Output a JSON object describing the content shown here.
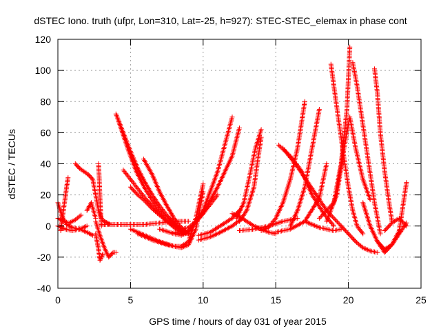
{
  "chart_data": {
    "type": "scatter",
    "title": "dSTEC Iono. truth (ufpr, Lon=310, Lat=-25, h=927): STEC-STEC_elemax in phase cont",
    "xlabel": "GPS time / hours of day 031 of year 2015",
    "ylabel": "dSTEC  / TECUs",
    "xlim": [
      0,
      25
    ],
    "ylim": [
      -40,
      120
    ],
    "xticks": [
      "0",
      "5",
      "10",
      "15",
      "20",
      "25"
    ],
    "yticks": [
      "-40",
      "-20",
      "0",
      "20",
      "40",
      "60",
      "80",
      "100",
      "120"
    ],
    "grid": true,
    "marker": "+",
    "colors": {
      "series": "#ff0000",
      "grid": "#a0a0a0",
      "axes": "#000000",
      "background": "#ffffff"
    },
    "series": [
      {
        "x": [
          0.0,
          0.3,
          0.6,
          1.0,
          1.5,
          2.0,
          2.4
        ],
        "y": [
          15,
          6,
          1,
          -1,
          -2,
          -4,
          -6
        ]
      },
      {
        "x": [
          0.2,
          0.35,
          0.5,
          0.6,
          0.7
        ],
        "y": [
          -3,
          8,
          18,
          25,
          31
        ]
      },
      {
        "x": [
          0.0,
          0.5,
          1.0,
          1.5,
          2.0
        ],
        "y": [
          0,
          -2,
          -3,
          -2,
          0
        ]
      },
      {
        "x": [
          0.0,
          0.4,
          0.8,
          1.2,
          1.6
        ],
        "y": [
          5,
          3,
          2,
          4,
          7
        ]
      },
      {
        "x": [
          1.2,
          1.5,
          1.8,
          2.1,
          2.4,
          2.6,
          2.8,
          3.0,
          3.2,
          3.4,
          3.6
        ],
        "y": [
          40,
          37,
          35,
          33,
          30,
          20,
          10,
          5,
          3,
          2,
          1
        ]
      },
      {
        "x": [
          2.0,
          2.3,
          2.6
        ],
        "y": [
          10,
          15,
          5
        ]
      },
      {
        "x": [
          2.8,
          2.85,
          2.9,
          2.95,
          3.0
        ],
        "y": [
          40,
          30,
          18,
          8,
          0
        ]
      },
      {
        "x": [
          2.6,
          2.9,
          3.2,
          3.5,
          3.8,
          4.0
        ],
        "y": [
          3,
          -6,
          -14,
          -20,
          -17,
          -17
        ]
      },
      {
        "x": [
          2.6,
          2.7,
          2.8,
          2.9,
          3.0,
          3.1
        ],
        "y": [
          -5,
          -10,
          -15,
          -22,
          -20,
          -18
        ]
      },
      {
        "x": [
          3.0,
          4.0,
          5.0,
          6.0,
          7.0,
          8.0,
          9.0
        ],
        "y": [
          1,
          1,
          1,
          1,
          2,
          3,
          3
        ]
      },
      {
        "x": [
          4.0,
          4.5,
          5.0,
          5.5,
          6.0,
          6.5,
          7.0,
          7.5,
          8.0,
          8.5,
          9.0
        ],
        "y": [
          72,
          60,
          48,
          37,
          28,
          20,
          13,
          7,
          2,
          -3,
          -5
        ]
      },
      {
        "x": [
          4.2,
          4.8,
          5.4,
          6.0,
          6.6,
          7.2,
          7.8,
          8.4,
          8.8
        ],
        "y": [
          67,
          50,
          35,
          24,
          15,
          8,
          3,
          -2,
          -4
        ]
      },
      {
        "x": [
          4.5,
          5.0,
          5.5,
          6.0,
          6.5,
          7.0,
          7.5,
          8.0,
          8.5,
          9.0
        ],
        "y": [
          36,
          30,
          24,
          18,
          13,
          8,
          3,
          -1,
          -4,
          -5
        ]
      },
      {
        "x": [
          5.0,
          5.5,
          6.0,
          6.5,
          7.0,
          7.5,
          8.0,
          8.5
        ],
        "y": [
          25,
          20,
          16,
          11,
          7,
          3,
          0,
          -3
        ]
      },
      {
        "x": [
          5.9,
          6.5,
          7.0,
          7.5,
          8.0,
          8.5,
          9.0
        ],
        "y": [
          43,
          33,
          22,
          13,
          5,
          -1,
          -5
        ]
      },
      {
        "x": [
          5.0,
          6.0,
          7.0,
          8.0,
          8.5,
          9.0,
          9.5,
          10.0
        ],
        "y": [
          -2,
          -6,
          -10,
          -13,
          -13,
          -10,
          5,
          27
        ]
      },
      {
        "x": [
          5.5,
          6.5,
          7.5,
          8.5,
          9.0,
          9.5,
          10.0
        ],
        "y": [
          -5,
          -9,
          -12,
          -14,
          -12,
          -2,
          22
        ]
      },
      {
        "x": [
          7.0,
          8.0,
          8.5,
          9.0,
          10.0,
          11.0,
          12.0
        ],
        "y": [
          -2,
          -5,
          -6,
          -4,
          10,
          35,
          70
        ]
      },
      {
        "x": [
          8.0,
          8.5,
          9.0,
          10.0,
          11.0,
          12.0,
          12.5
        ],
        "y": [
          -4,
          -5,
          -3,
          8,
          25,
          45,
          63
        ]
      },
      {
        "x": [
          8.5,
          9.0,
          9.5,
          10.0,
          10.5,
          11.0
        ],
        "y": [
          -2,
          -1,
          3,
          8,
          14,
          20
        ]
      },
      {
        "x": [
          9.7,
          10.5,
          11.0,
          11.5,
          12.0,
          12.5
        ],
        "y": [
          -6,
          -4,
          -1,
          2,
          5,
          10
        ]
      },
      {
        "x": [
          9.7,
          10.5,
          11.2,
          12.0,
          12.7
        ],
        "y": [
          -9,
          -7,
          -4,
          0,
          5
        ]
      },
      {
        "x": [
          12.0,
          12.5,
          13.0,
          13.5,
          14.0,
          14.5,
          15.0
        ],
        "y": [
          8,
          6,
          3,
          0,
          -2,
          -4,
          -5
        ]
      },
      {
        "x": [
          12.3,
          12.8,
          13.2,
          13.6,
          14.0
        ],
        "y": [
          5,
          15,
          32,
          50,
          62
        ]
      },
      {
        "x": [
          12.5,
          13.0,
          13.5,
          13.8,
          14.0
        ],
        "y": [
          3,
          10,
          25,
          45,
          57
        ]
      },
      {
        "x": [
          12.5,
          13.5,
          14.5,
          15.5,
          16.5
        ],
        "y": [
          -3,
          -2,
          0,
          3,
          5
        ]
      },
      {
        "x": [
          14.0,
          14.5,
          15.0,
          15.5,
          16.0,
          16.5,
          17.0
        ],
        "y": [
          -3,
          -1,
          5,
          15,
          30,
          50,
          80
        ]
      },
      {
        "x": [
          15.2,
          16.0,
          16.8,
          17.5,
          18.3,
          19.0
        ],
        "y": [
          52,
          45,
          35,
          20,
          8,
          0
        ]
      },
      {
        "x": [
          15.5,
          16.5,
          17.5,
          18.5,
          19.5
        ],
        "y": [
          50,
          38,
          24,
          10,
          0
        ]
      },
      {
        "x": [
          15.0,
          16.0,
          17.0,
          18.0,
          18.5
        ],
        "y": [
          -4,
          -2,
          3,
          18,
          40
        ]
      },
      {
        "x": [
          16.0,
          16.5,
          17.0,
          17.5,
          18.0
        ],
        "y": [
          0,
          10,
          25,
          50,
          75
        ]
      },
      {
        "x": [
          17.0,
          17.5,
          18.0,
          18.5,
          19.0,
          19.5
        ],
        "y": [
          3,
          1,
          -1,
          -2,
          -3,
          -2
        ]
      },
      {
        "x": [
          18.8,
          19.0,
          19.3,
          19.6,
          20.0,
          20.3,
          20.6,
          21.0
        ],
        "y": [
          104,
          90,
          70,
          50,
          25,
          10,
          0,
          -5
        ]
      },
      {
        "x": [
          18.0,
          19.0,
          19.5,
          19.9,
          20.1
        ],
        "y": [
          5,
          15,
          40,
          75,
          115
        ]
      },
      {
        "x": [
          18.5,
          19.2,
          19.7,
          20.1,
          20.5,
          21.0,
          21.5
        ],
        "y": [
          3,
          20,
          50,
          70,
          50,
          30,
          17
        ]
      },
      {
        "x": [
          20.3,
          20.6,
          21.0,
          21.4,
          21.8,
          22.2
        ],
        "y": [
          105,
          90,
          65,
          40,
          15,
          -5
        ]
      },
      {
        "x": [
          19.5,
          20.0,
          20.5,
          21.0,
          21.5,
          22.0
        ],
        "y": [
          0,
          -5,
          -10,
          -14,
          -16,
          -17
        ]
      },
      {
        "x": [
          21.0,
          21.5,
          22.0,
          22.5,
          23.0,
          23.5,
          24.0
        ],
        "y": [
          15,
          0,
          -10,
          -15,
          -12,
          -5,
          2
        ]
      },
      {
        "x": [
          21.8,
          22.0,
          22.2,
          22.5,
          22.8,
          23.0
        ],
        "y": [
          101,
          85,
          60,
          35,
          15,
          3
        ]
      },
      {
        "x": [
          22.0,
          22.5,
          23.0,
          23.5,
          24.0
        ],
        "y": [
          -10,
          -17,
          -12,
          -3,
          28
        ]
      },
      {
        "x": [
          22.5,
          23.0,
          23.5,
          24.0
        ],
        "y": [
          -3,
          2,
          5,
          0
        ]
      }
    ]
  }
}
